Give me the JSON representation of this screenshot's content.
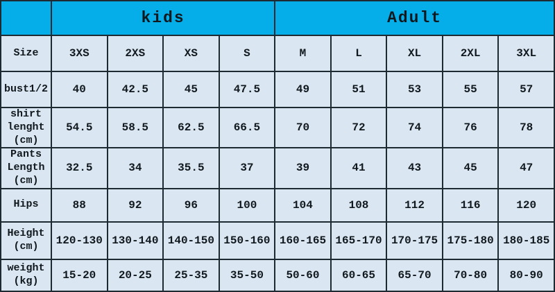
{
  "colors": {
    "group_header_bg": "#05ade9",
    "cell_bg": "#dae6f2",
    "border": "#1e2a31",
    "text": "#10181d"
  },
  "chart_data": {
    "type": "table",
    "title": "",
    "group_headers": [
      {
        "label": "",
        "span": 1
      },
      {
        "label": "kids",
        "span": 4
      },
      {
        "label": "Adult",
        "span": 5
      }
    ],
    "rows": [
      {
        "key": "size",
        "label": "Size",
        "values": [
          "3XS",
          "2XS",
          "XS",
          "S",
          "M",
          "L",
          "XL",
          "2XL",
          "3XL"
        ]
      },
      {
        "key": "bust-half",
        "label": "bust1/2",
        "values": [
          "40",
          "42.5",
          "45",
          "47.5",
          "49",
          "51",
          "53",
          "55",
          "57"
        ]
      },
      {
        "key": "shirt-length",
        "label": "shirt\nlenght\n(cm)",
        "values": [
          "54.5",
          "58.5",
          "62.5",
          "66.5",
          "70",
          "72",
          "74",
          "76",
          "78"
        ]
      },
      {
        "key": "pants-length",
        "label": "Pants\nLength\n(cm)",
        "values": [
          "32.5",
          "34",
          "35.5",
          "37",
          "39",
          "41",
          "43",
          "45",
          "47"
        ]
      },
      {
        "key": "hips",
        "label": "Hips",
        "values": [
          "88",
          "92",
          "96",
          "100",
          "104",
          "108",
          "112",
          "116",
          "120"
        ]
      },
      {
        "key": "height",
        "label": "Height\n(cm)",
        "values": [
          "120-130",
          "130-140",
          "140-150",
          "150-160",
          "160-165",
          "165-170",
          "170-175",
          "175-180",
          "180-185"
        ]
      },
      {
        "key": "weight",
        "label": "weight\n(kg)",
        "values": [
          "15-20",
          "20-25",
          "25-35",
          "35-50",
          "50-60",
          "60-65",
          "65-70",
          "70-80",
          "80-90"
        ]
      }
    ]
  }
}
